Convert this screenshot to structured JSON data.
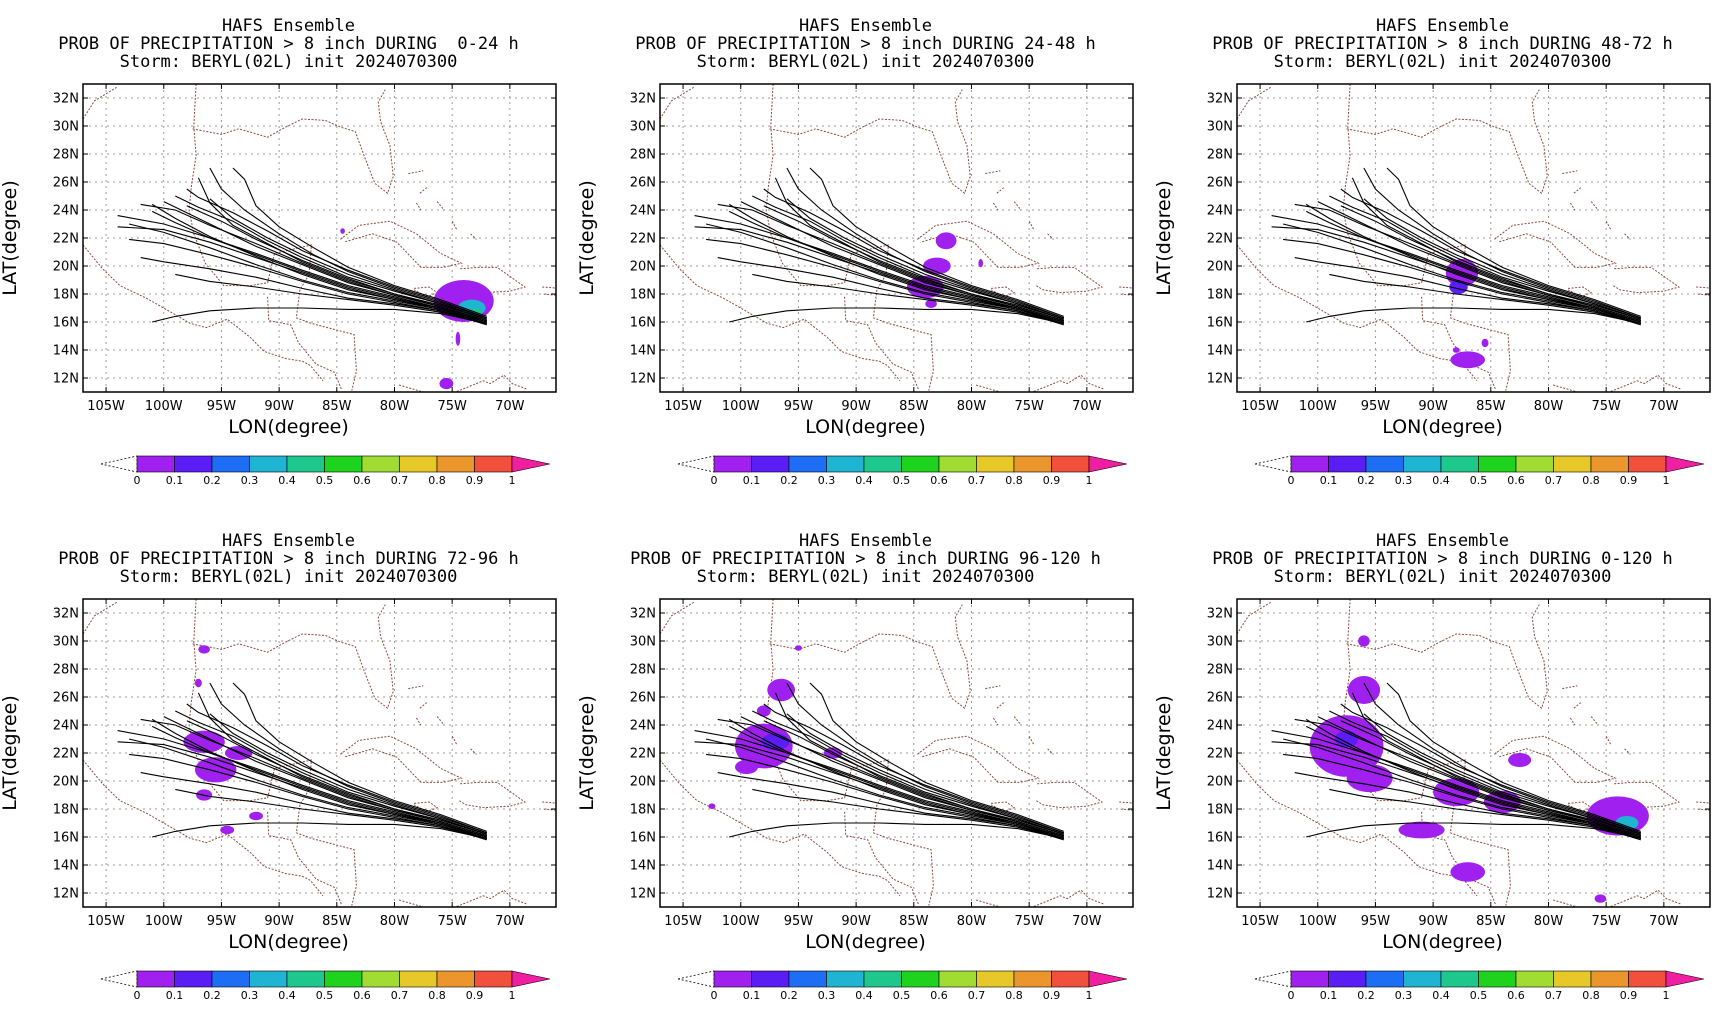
{
  "page": {
    "panels": [
      {
        "title1": "HAFS Ensemble",
        "title2": "PROB OF PRECIPITATION > 8 inch DURING  0-24 h",
        "title3": "Storm: BERYL(02L) init 2024070300"
      },
      {
        "title1": "HAFS Ensemble",
        "title2": "PROB OF PRECIPITATION > 8 inch DURING 24-48 h",
        "title3": "Storm: BERYL(02L) init 2024070300"
      },
      {
        "title1": "HAFS Ensemble",
        "title2": "PROB OF PRECIPITATION > 8 inch DURING 48-72 h",
        "title3": "Storm: BERYL(02L) init 2024070300"
      },
      {
        "title1": "HAFS Ensemble",
        "title2": "PROB OF PRECIPITATION > 8 inch DURING 72-96 h",
        "title3": "Storm: BERYL(02L) init 2024070300"
      },
      {
        "title1": "HAFS Ensemble",
        "title2": "PROB OF PRECIPITATION > 8 inch DURING 96-120 h",
        "title3": "Storm: BERYL(02L) init 2024070300"
      },
      {
        "title1": "HAFS Ensemble",
        "title2": "PROB OF PRECIPITATION > 8 inch DURING 0-120 h",
        "title3": "Storm: BERYL(02L) init 2024070300"
      }
    ],
    "xlabel": "LON(degree)",
    "ylabel": "LAT(degree)"
  },
  "chart_data": {
    "type": "heatmap",
    "xlim": [
      -107,
      -66
    ],
    "ylim": [
      11,
      33
    ],
    "x_ticks": [
      "105W",
      "100W",
      "95W",
      "90W",
      "85W",
      "80W",
      "75W",
      "70W"
    ],
    "x_tick_values": [
      -105,
      -100,
      -95,
      -90,
      -85,
      -80,
      -75,
      -70
    ],
    "y_ticks": [
      "12N",
      "14N",
      "16N",
      "18N",
      "20N",
      "22N",
      "24N",
      "26N",
      "28N",
      "30N",
      "32N"
    ],
    "y_tick_values": [
      12,
      14,
      16,
      18,
      20,
      22,
      24,
      26,
      28,
      30,
      32
    ],
    "grid": true,
    "colorbar": {
      "labels": [
        "0",
        "0.1",
        "0.2",
        "0.3",
        "0.4",
        "0.5",
        "0.6",
        "0.7",
        "0.8",
        "0.9",
        "1"
      ],
      "colors": [
        "#a020f0",
        "#5a1ef5",
        "#1e6ef5",
        "#1eb4d2",
        "#1ec88c",
        "#1ed21e",
        "#a0dc32",
        "#e6c828",
        "#eb962d",
        "#f0503c",
        "#f01ea0"
      ]
    },
    "tracks": [
      [
        [
          -72,
          16.0
        ],
        [
          -76,
          17.0
        ],
        [
          -80,
          17.6
        ],
        [
          -84,
          18.3
        ],
        [
          -88,
          19.4
        ],
        [
          -92,
          20.7
        ],
        [
          -96,
          22.1
        ],
        [
          -99,
          23.4
        ],
        [
          -101,
          24.4
        ]
      ],
      [
        [
          -72,
          16.1
        ],
        [
          -76,
          17.1
        ],
        [
          -80,
          17.9
        ],
        [
          -84,
          18.8
        ],
        [
          -88,
          20.1
        ],
        [
          -92,
          21.4
        ],
        [
          -95,
          22.6
        ],
        [
          -98,
          23.8
        ],
        [
          -100,
          24.6
        ]
      ],
      [
        [
          -72,
          16.2
        ],
        [
          -76,
          17.3
        ],
        [
          -80,
          18.2
        ],
        [
          -84,
          19.2
        ],
        [
          -88,
          20.6
        ],
        [
          -91,
          21.8
        ],
        [
          -94,
          23.2
        ],
        [
          -97,
          24.2
        ],
        [
          -99,
          25.0
        ]
      ],
      [
        [
          -72,
          15.9
        ],
        [
          -76,
          16.9
        ],
        [
          -80,
          17.5
        ],
        [
          -84,
          18.1
        ],
        [
          -88,
          19.0
        ],
        [
          -92,
          20.1
        ],
        [
          -96,
          21.3
        ],
        [
          -100,
          22.4
        ],
        [
          -103,
          23.0
        ]
      ],
      [
        [
          -72,
          16.3
        ],
        [
          -76,
          17.4
        ],
        [
          -80,
          18.4
        ],
        [
          -84,
          19.6
        ],
        [
          -87,
          20.8
        ],
        [
          -90,
          22.3
        ],
        [
          -93,
          24.0
        ],
        [
          -95,
          25.5
        ],
        [
          -96,
          27.0
        ]
      ],
      [
        [
          -72,
          16.0
        ],
        [
          -76,
          17.0
        ],
        [
          -80,
          17.8
        ],
        [
          -84,
          18.6
        ],
        [
          -88,
          19.7
        ],
        [
          -92,
          20.9
        ],
        [
          -96,
          22.0
        ],
        [
          -100,
          23.0
        ],
        [
          -104,
          23.6
        ]
      ],
      [
        [
          -72,
          16.2
        ],
        [
          -76,
          17.2
        ],
        [
          -80,
          18.0
        ],
        [
          -84,
          19.0
        ],
        [
          -88,
          20.3
        ],
        [
          -91,
          21.6
        ],
        [
          -94,
          22.9
        ],
        [
          -96,
          24.5
        ],
        [
          -97,
          26.3
        ]
      ],
      [
        [
          -72,
          15.8
        ],
        [
          -76,
          16.8
        ],
        [
          -80,
          17.3
        ],
        [
          -84,
          17.7
        ],
        [
          -88,
          18.4
        ],
        [
          -92,
          19.2
        ],
        [
          -96,
          19.8
        ],
        [
          -100,
          20.3
        ],
        [
          -102,
          20.6
        ]
      ],
      [
        [
          -72,
          16.1
        ],
        [
          -76,
          17.1
        ],
        [
          -80,
          17.9
        ],
        [
          -84,
          18.9
        ],
        [
          -88,
          20.2
        ],
        [
          -92,
          21.6
        ],
        [
          -96,
          22.9
        ],
        [
          -99,
          24.0
        ],
        [
          -102,
          24.4
        ]
      ],
      [
        [
          -72,
          16.4
        ],
        [
          -76,
          17.6
        ],
        [
          -80,
          18.6
        ],
        [
          -84,
          19.9
        ],
        [
          -87,
          21.3
        ],
        [
          -90,
          22.8
        ],
        [
          -92,
          24.3
        ],
        [
          -93,
          26.2
        ],
        [
          -94,
          27.0
        ]
      ],
      [
        [
          -72,
          15.9
        ],
        [
          -76,
          16.7
        ],
        [
          -80,
          17.2
        ],
        [
          -84,
          17.6
        ],
        [
          -88,
          18.0
        ],
        [
          -92,
          18.5
        ],
        [
          -96,
          18.9
        ],
        [
          -99,
          19.4
        ]
      ],
      [
        [
          -72,
          16.0
        ],
        [
          -76,
          16.9
        ],
        [
          -80,
          17.6
        ],
        [
          -84,
          18.4
        ],
        [
          -88,
          19.5
        ],
        [
          -92,
          20.6
        ],
        [
          -96,
          21.7
        ],
        [
          -100,
          22.6
        ],
        [
          -104,
          22.8
        ]
      ],
      [
        [
          -72,
          16.2
        ],
        [
          -76,
          17.3
        ],
        [
          -80,
          18.3
        ],
        [
          -84,
          19.4
        ],
        [
          -88,
          20.8
        ],
        [
          -91,
          22.0
        ],
        [
          -94,
          23.4
        ],
        [
          -96,
          24.8
        ]
      ],
      [
        [
          -72,
          15.9
        ],
        [
          -76,
          16.8
        ],
        [
          -80,
          17.4
        ],
        [
          -84,
          18.0
        ],
        [
          -88,
          18.9
        ],
        [
          -92,
          19.9
        ],
        [
          -96,
          20.8
        ],
        [
          -100,
          21.6
        ],
        [
          -103,
          21.9
        ]
      ],
      [
        [
          -72,
          16.1
        ],
        [
          -76,
          17.1
        ],
        [
          -80,
          18.0
        ],
        [
          -84,
          19.1
        ],
        [
          -88,
          20.4
        ],
        [
          -92,
          21.9
        ],
        [
          -95,
          23.2
        ],
        [
          -98,
          24.3
        ]
      ],
      [
        [
          -72,
          15.9
        ],
        [
          -76,
          16.6
        ],
        [
          -80,
          16.9
        ],
        [
          -84,
          16.9
        ],
        [
          -88,
          17.0
        ],
        [
          -92,
          17.0
        ],
        [
          -96,
          16.8
        ],
        [
          -99,
          16.4
        ],
        [
          -101,
          16.0
        ]
      ],
      [
        [
          -72,
          16.0
        ],
        [
          -76,
          17.0
        ],
        [
          -80,
          17.7
        ],
        [
          -84,
          18.5
        ],
        [
          -88,
          19.6
        ],
        [
          -92,
          20.8
        ],
        [
          -96,
          22.0
        ],
        [
          -99,
          23.1
        ],
        [
          -101,
          23.9
        ]
      ],
      [
        [
          -72,
          16.3
        ],
        [
          -76,
          17.5
        ],
        [
          -80,
          18.5
        ],
        [
          -84,
          19.7
        ],
        [
          -88,
          21.1
        ],
        [
          -91,
          22.5
        ],
        [
          -94,
          23.8
        ],
        [
          -97,
          24.9
        ],
        [
          -98,
          25.5
        ]
      ]
    ],
    "precip_blobs": [
      [
        {
          "lon": -74.0,
          "lat": 17.5,
          "rx": 2.6,
          "ry": 1.5,
          "p": 0.05
        },
        {
          "lon": -73.3,
          "lat": 17.0,
          "rx": 1.2,
          "ry": 0.6,
          "p": 0.3
        },
        {
          "lon": -72.9,
          "lat": 16.7,
          "rx": 0.4,
          "ry": 0.3,
          "p": 0.4
        },
        {
          "lon": -75.5,
          "lat": 11.6,
          "rx": 0.6,
          "ry": 0.4,
          "p": 0.05
        },
        {
          "lon": -74.5,
          "lat": 14.8,
          "rx": 0.2,
          "ry": 0.5,
          "p": 0.05
        },
        {
          "lon": -84.5,
          "lat": 22.5,
          "rx": 0.2,
          "ry": 0.2,
          "p": 0.05
        }
      ],
      [
        {
          "lon": -83.0,
          "lat": 20.0,
          "rx": 1.2,
          "ry": 0.6,
          "p": 0.05
        },
        {
          "lon": -82.2,
          "lat": 21.8,
          "rx": 0.9,
          "ry": 0.6,
          "p": 0.05
        },
        {
          "lon": -84.0,
          "lat": 18.5,
          "rx": 1.6,
          "ry": 0.8,
          "p": 0.05
        },
        {
          "lon": -83.5,
          "lat": 17.3,
          "rx": 0.5,
          "ry": 0.3,
          "p": 0.05
        },
        {
          "lon": -79.2,
          "lat": 20.2,
          "rx": 0.2,
          "ry": 0.3,
          "p": 0.05
        }
      ],
      [
        {
          "lon": -87.5,
          "lat": 19.5,
          "rx": 1.4,
          "ry": 1.0,
          "p": 0.05
        },
        {
          "lon": -87.8,
          "lat": 18.5,
          "rx": 0.8,
          "ry": 0.5,
          "p": 0.15
        },
        {
          "lon": -87.0,
          "lat": 13.3,
          "rx": 1.5,
          "ry": 0.6,
          "p": 0.05
        },
        {
          "lon": -85.5,
          "lat": 14.5,
          "rx": 0.3,
          "ry": 0.3,
          "p": 0.05
        },
        {
          "lon": -88.0,
          "lat": 14.0,
          "rx": 0.3,
          "ry": 0.2,
          "p": 0.05
        }
      ],
      [
        {
          "lon": -96.5,
          "lat": 22.8,
          "rx": 1.8,
          "ry": 0.8,
          "p": 0.05
        },
        {
          "lon": -95.5,
          "lat": 20.8,
          "rx": 1.8,
          "ry": 0.9,
          "p": 0.05
        },
        {
          "lon": -93.5,
          "lat": 22.0,
          "rx": 1.2,
          "ry": 0.5,
          "p": 0.05
        },
        {
          "lon": -96.5,
          "lat": 19.0,
          "rx": 0.7,
          "ry": 0.4,
          "p": 0.05
        },
        {
          "lon": -94.5,
          "lat": 16.5,
          "rx": 0.6,
          "ry": 0.3,
          "p": 0.05
        },
        {
          "lon": -92.0,
          "lat": 17.5,
          "rx": 0.6,
          "ry": 0.3,
          "p": 0.05
        },
        {
          "lon": -96.5,
          "lat": 29.4,
          "rx": 0.5,
          "ry": 0.3,
          "p": 0.05
        },
        {
          "lon": -97.0,
          "lat": 27.0,
          "rx": 0.3,
          "ry": 0.3,
          "p": 0.05
        }
      ],
      [
        {
          "lon": -98.0,
          "lat": 22.5,
          "rx": 2.5,
          "ry": 1.6,
          "p": 0.05
        },
        {
          "lon": -96.5,
          "lat": 26.5,
          "rx": 1.2,
          "ry": 0.8,
          "p": 0.05
        },
        {
          "lon": -97.0,
          "lat": 22.8,
          "rx": 1.2,
          "ry": 0.6,
          "p": 0.15
        },
        {
          "lon": -99.5,
          "lat": 21.0,
          "rx": 1.0,
          "ry": 0.5,
          "p": 0.05
        },
        {
          "lon": -92.0,
          "lat": 22.0,
          "rx": 0.8,
          "ry": 0.4,
          "p": 0.05
        },
        {
          "lon": -95.0,
          "lat": 29.5,
          "rx": 0.3,
          "ry": 0.2,
          "p": 0.05
        },
        {
          "lon": -102.5,
          "lat": 18.2,
          "rx": 0.3,
          "ry": 0.2,
          "p": 0.05
        },
        {
          "lon": -98.0,
          "lat": 25.0,
          "rx": 0.6,
          "ry": 0.4,
          "p": 0.05
        }
      ],
      [
        {
          "lon": -97.5,
          "lat": 22.5,
          "rx": 3.2,
          "ry": 2.2,
          "p": 0.05
        },
        {
          "lon": -96.0,
          "lat": 26.5,
          "rx": 1.4,
          "ry": 1.0,
          "p": 0.05
        },
        {
          "lon": -95.5,
          "lat": 20.2,
          "rx": 2.0,
          "ry": 1.0,
          "p": 0.05
        },
        {
          "lon": -88.0,
          "lat": 19.2,
          "rx": 2.0,
          "ry": 1.0,
          "p": 0.05
        },
        {
          "lon": -84.0,
          "lat": 18.5,
          "rx": 1.6,
          "ry": 0.8,
          "p": 0.05
        },
        {
          "lon": -82.5,
          "lat": 21.5,
          "rx": 1.0,
          "ry": 0.5,
          "p": 0.05
        },
        {
          "lon": -87.0,
          "lat": 13.5,
          "rx": 1.5,
          "ry": 0.7,
          "p": 0.05
        },
        {
          "lon": -91.0,
          "lat": 16.5,
          "rx": 2.0,
          "ry": 0.6,
          "p": 0.05
        },
        {
          "lon": -74.0,
          "lat": 17.5,
          "rx": 2.7,
          "ry": 1.4,
          "p": 0.05
        },
        {
          "lon": -73.2,
          "lat": 17.0,
          "rx": 1.0,
          "ry": 0.5,
          "p": 0.3
        },
        {
          "lon": -97.5,
          "lat": 23.0,
          "rx": 1.0,
          "ry": 0.6,
          "p": 0.15
        },
        {
          "lon": -75.5,
          "lat": 11.6,
          "rx": 0.5,
          "ry": 0.3,
          "p": 0.05
        },
        {
          "lon": -96.0,
          "lat": 30.0,
          "rx": 0.5,
          "ry": 0.4,
          "p": 0.05
        }
      ]
    ]
  }
}
